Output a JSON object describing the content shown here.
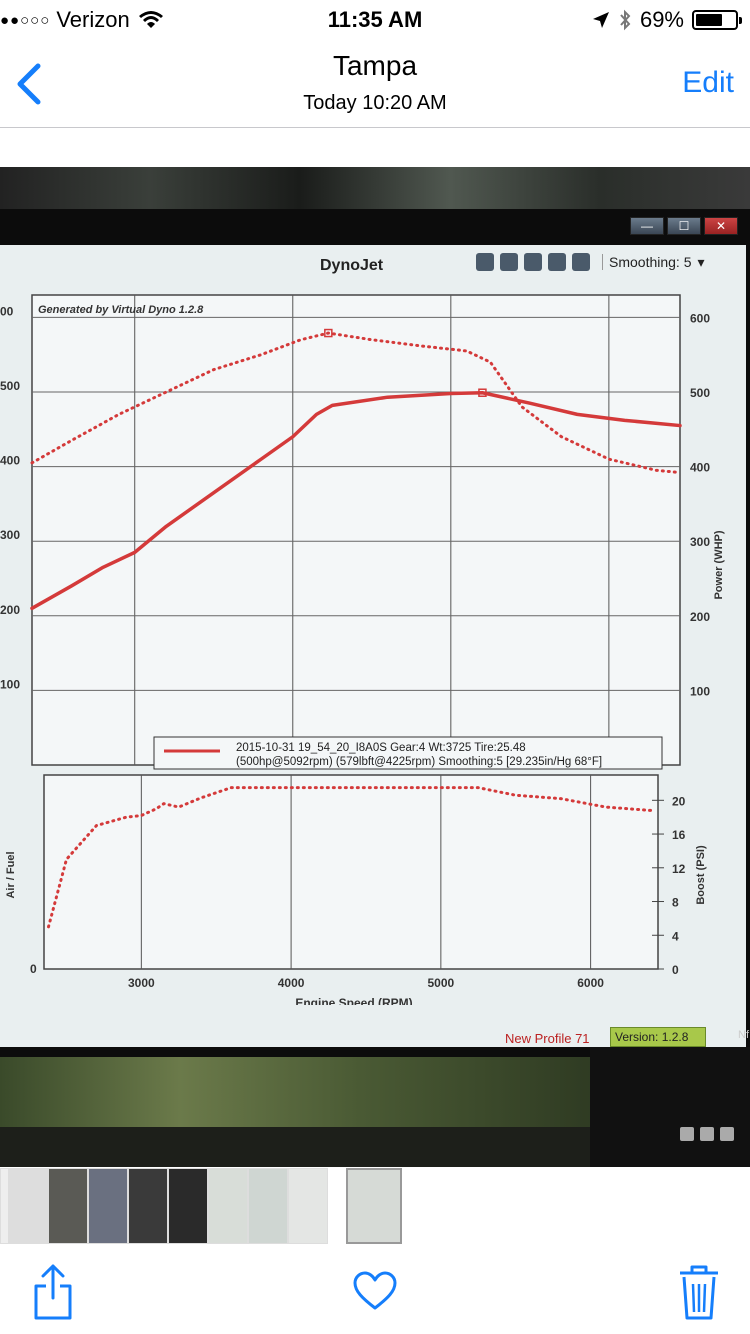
{
  "status_bar": {
    "signal": "●●○○○",
    "carrier": "Verizon",
    "time": "11:35 AM",
    "battery_percent": "69%",
    "battery_level": 0.69
  },
  "nav": {
    "title": "Tampa",
    "subtitle": "Today  10:20 AM",
    "edit_label": "Edit"
  },
  "photo": {
    "app_title": "DynoJet",
    "smoothing_label": "Smoothing: 5",
    "generated_by": "Generated by Virtual Dyno 1.2.8",
    "legend_line1": "2015-10-31 19_54_20_I8A0S Gear:4 Wt:3725 Tire:25.48",
    "legend_line2": "(500hp@5092rpm) (579lbft@4225rpm) Smoothing:5 [29.235in/Hg 68°F]",
    "profile_label": "New Profile 71",
    "version_label": "Version: 1.2.8",
    "window_min": "—",
    "window_max": "☐",
    "window_close": "✕",
    "side_label": "Nf",
    "y_left_upper_ticks": [
      "00",
      "500",
      "400",
      "300",
      "200",
      "100"
    ],
    "y_right_upper_ticks": [
      "600",
      "500",
      "400",
      "300",
      "200",
      "100"
    ],
    "y_right_upper_label": "Power (WHP)",
    "y_left_lower_label": "Air / Fuel",
    "y_left_lower_tick": "0",
    "y_right_lower_ticks": [
      "20",
      "16",
      "12",
      "8",
      "4",
      "0"
    ],
    "y_right_lower_label": "Boost (PSI)",
    "x_ticks": [
      "3000",
      "4000",
      "5000",
      "6000"
    ],
    "x_label": "Engine Speed (RPM)"
  },
  "chart_data": [
    {
      "type": "line",
      "xlabel": "Engine Speed (RPM)",
      "ylabel": "Power (WHP)",
      "xlim": [
        2350,
        6450
      ],
      "ylim": [
        0,
        630
      ],
      "series": [
        {
          "style": "solid",
          "color": "#d43a3a",
          "x": [
            2350,
            2600,
            2800,
            3000,
            3200,
            3500,
            3800,
            4000,
            4150,
            4250,
            4600,
            5000,
            5200,
            5500,
            5800,
            6100,
            6450
          ],
          "values": [
            210,
            240,
            265,
            285,
            320,
            365,
            410,
            440,
            470,
            482,
            493,
            498,
            499,
            485,
            470,
            462,
            455
          ]
        },
        {
          "style": "dotted",
          "color": "#d43a3a",
          "x": [
            2350,
            2600,
            2900,
            3200,
            3500,
            3800,
            4050,
            4225,
            4500,
            4800,
            5100,
            5250,
            5450,
            5700,
            6000,
            6300,
            6450
          ],
          "values": [
            405,
            435,
            470,
            500,
            530,
            550,
            570,
            579,
            570,
            562,
            555,
            540,
            480,
            440,
            410,
            395,
            392
          ]
        }
      ]
    },
    {
      "type": "line",
      "xlabel": "Engine Speed (RPM)",
      "ylabel": "Boost (PSI)",
      "xlim": [
        2350,
        6450
      ],
      "ylim": [
        0,
        23
      ],
      "series": [
        {
          "style": "dotted",
          "color": "#d43a3a",
          "x": [
            2380,
            2500,
            2700,
            2900,
            3000,
            3100,
            3150,
            3250,
            3400,
            3600,
            4000,
            4500,
            5000,
            5250,
            5500,
            5800,
            6100,
            6400
          ],
          "values": [
            5,
            13,
            17,
            18,
            18.2,
            19,
            19.6,
            19.2,
            20.3,
            21.5,
            21.5,
            21.5,
            21.5,
            21.5,
            20.6,
            20.2,
            19.2,
            18.8
          ]
        }
      ]
    }
  ],
  "bottom_toolbar": {
    "share_icon": "share-icon",
    "favorite_icon": "heart-icon",
    "delete_icon": "trash-icon"
  }
}
